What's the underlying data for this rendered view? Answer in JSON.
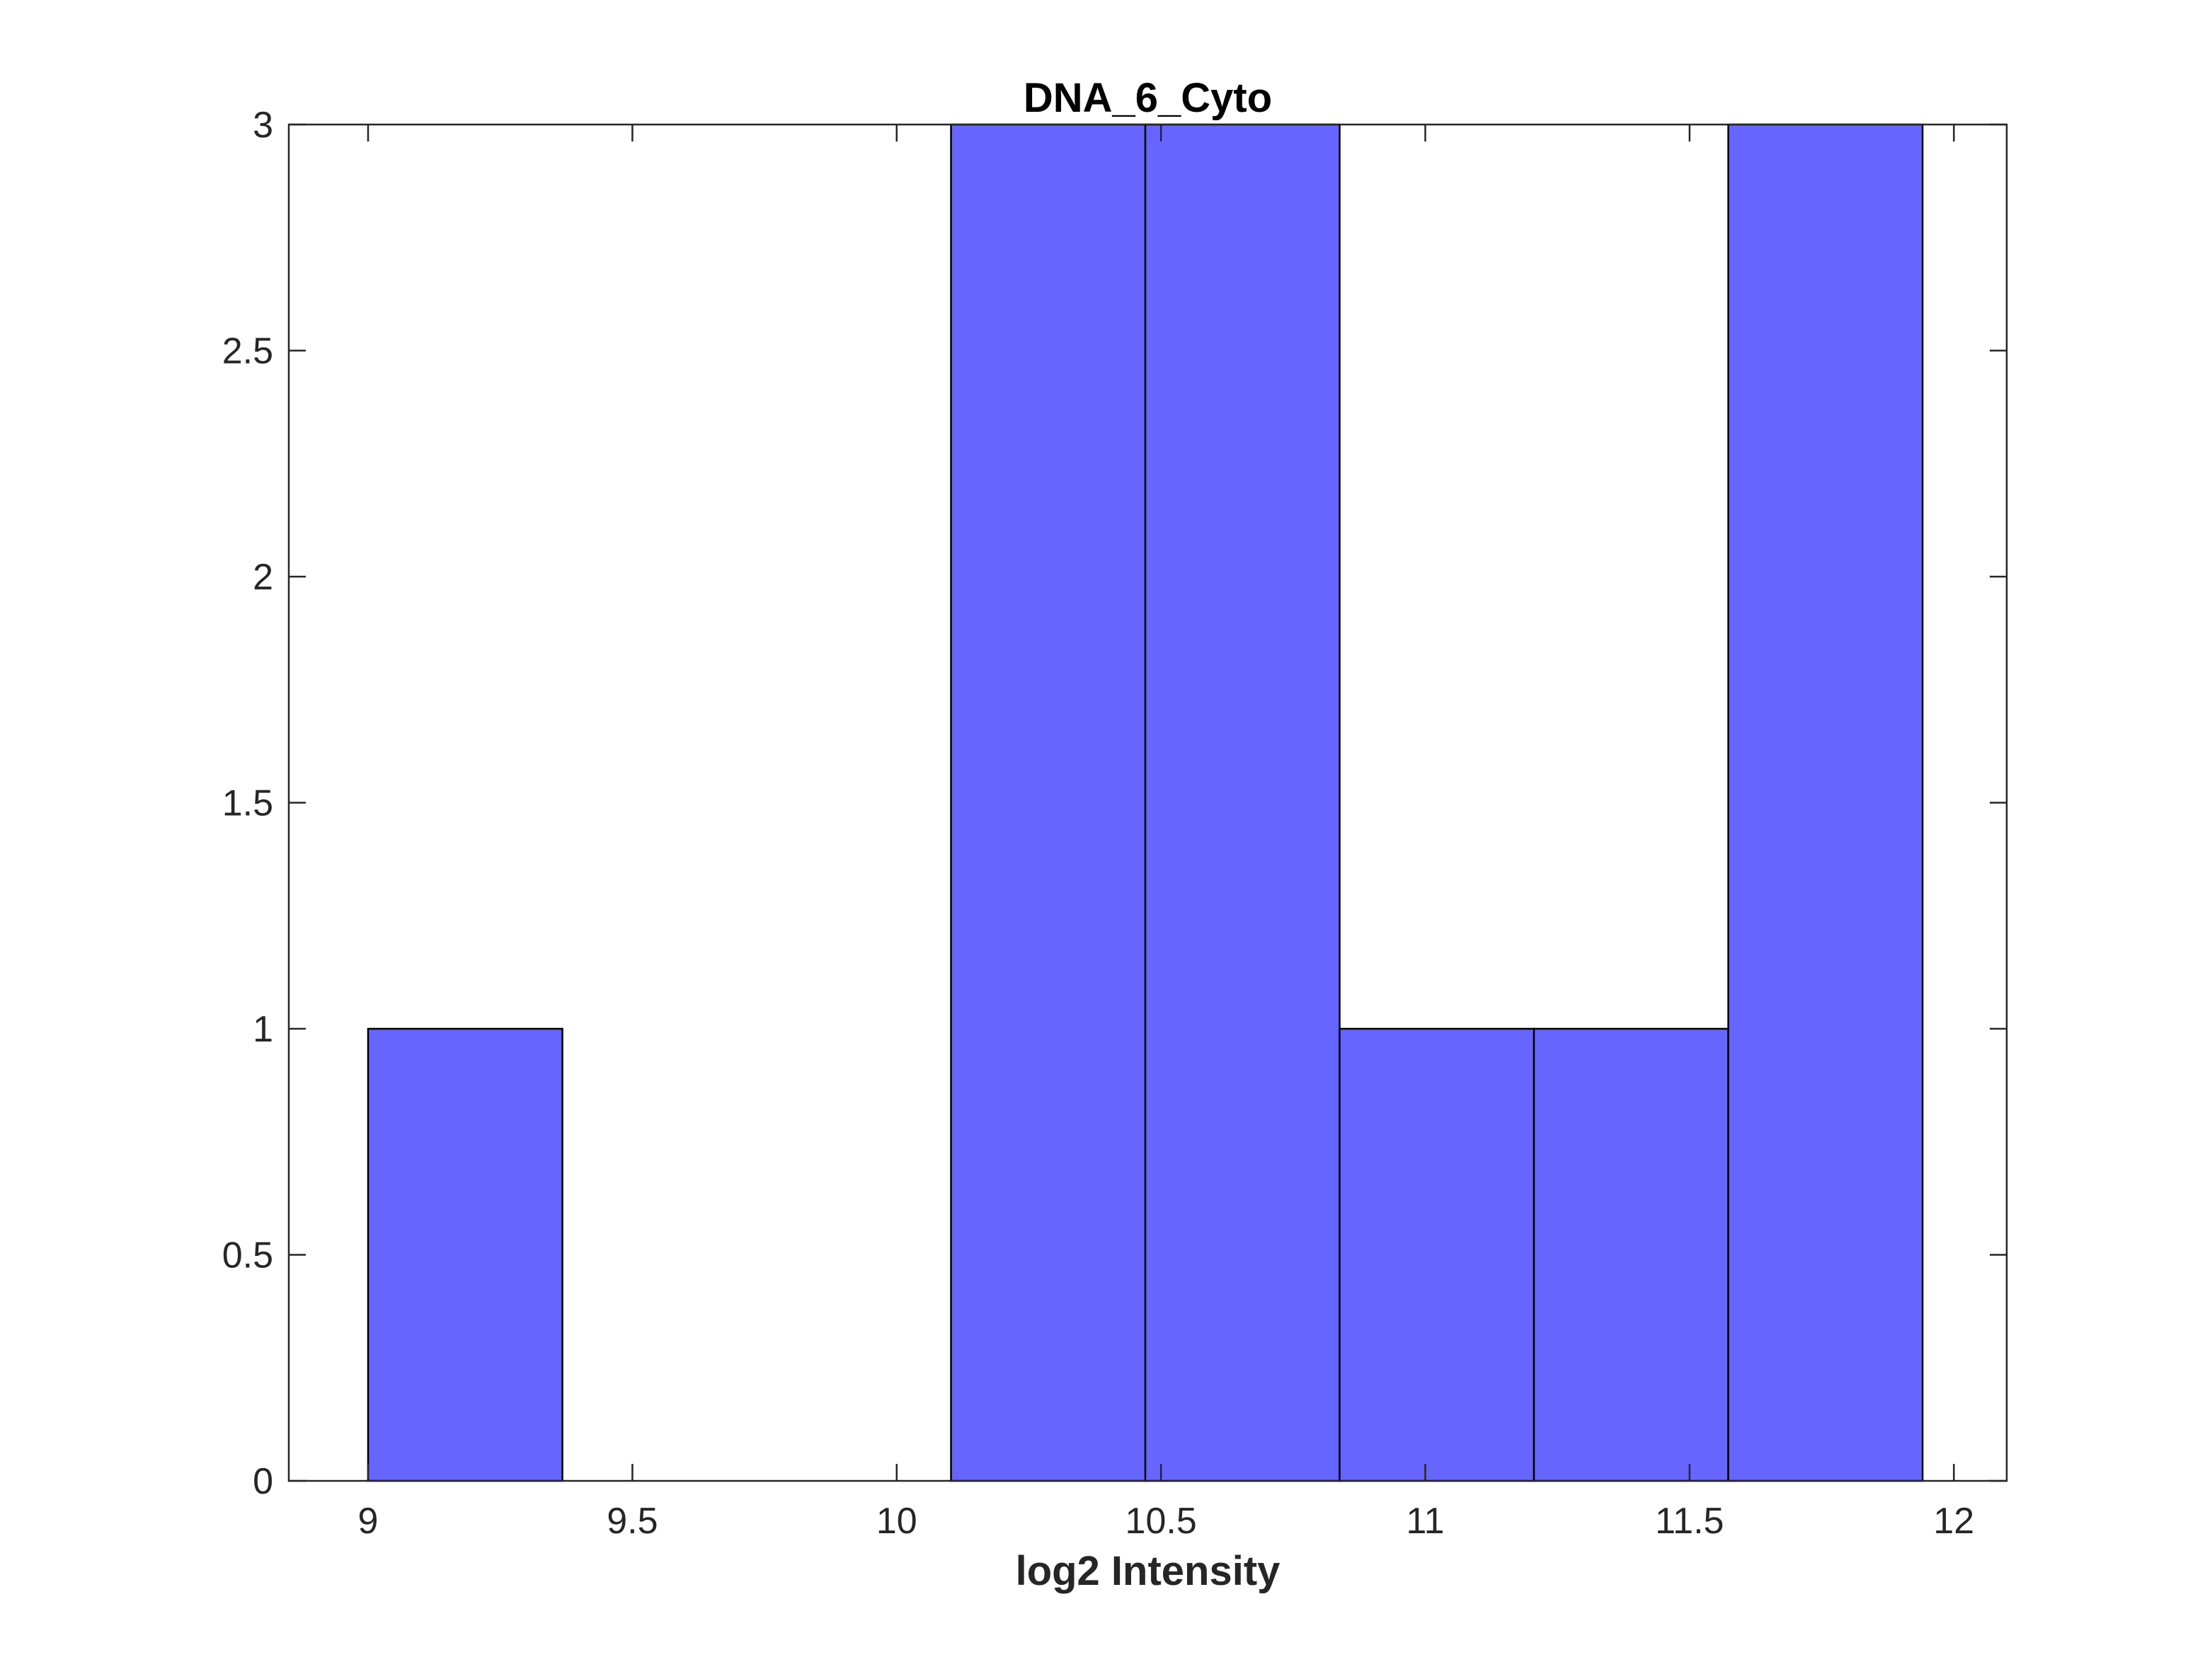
{
  "chart_data": {
    "type": "bar",
    "title": "DNA_6_Cyto",
    "xlabel": "log2 Intensity",
    "ylabel": "",
    "bin_edges": [
      9.0,
      9.3676,
      9.7352,
      10.1028,
      10.4704,
      10.838,
      11.2056,
      11.5732,
      11.9408
    ],
    "values": [
      1,
      0,
      0,
      3,
      3,
      1,
      1,
      3
    ],
    "xlim": [
      8.85,
      12.1
    ],
    "ylim": [
      0,
      3
    ],
    "xticks": [
      "9",
      "9.5",
      "10",
      "10.5",
      "11",
      "11.5",
      "12"
    ],
    "yticks": [
      "0",
      "0.5",
      "1",
      "1.5",
      "2",
      "2.5",
      "3"
    ],
    "bar_color": "#6666ff",
    "edge_color": "#000000",
    "grid": false,
    "legend": "none"
  }
}
